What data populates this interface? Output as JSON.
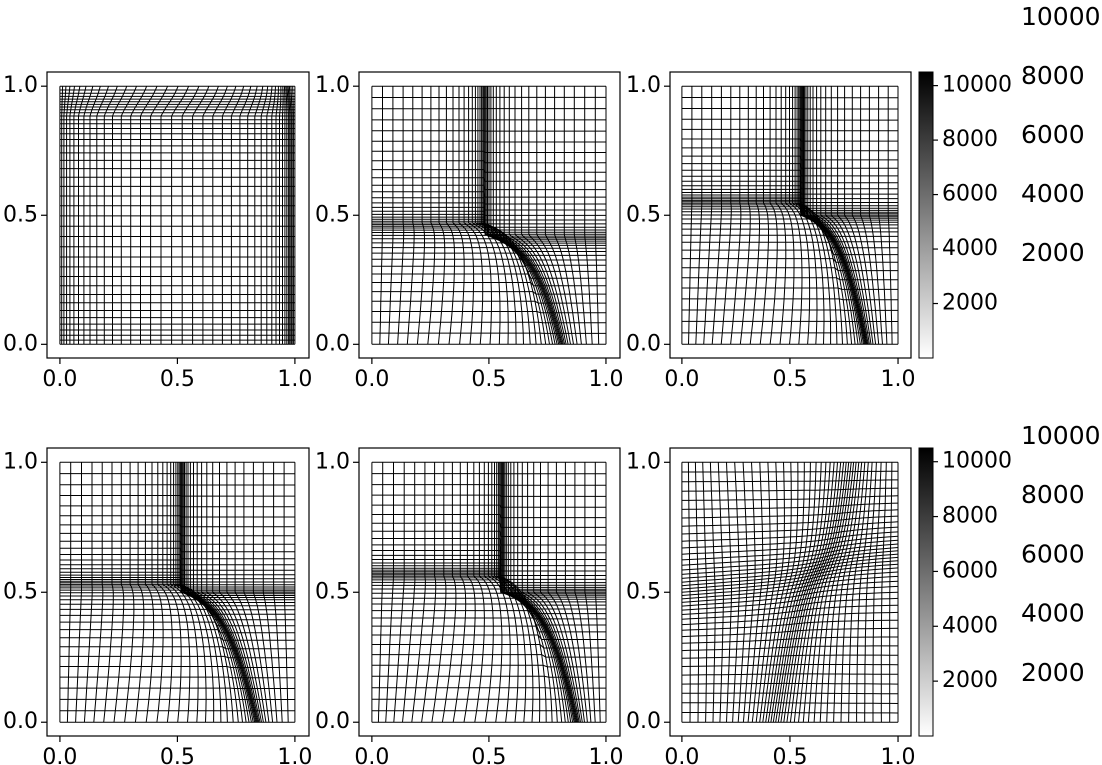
{
  "chart_data": [
    {
      "type": "mesh",
      "xlim": [
        -0.055,
        1.06
      ],
      "ylim": [
        -0.053,
        1.055
      ],
      "xticks": [
        {
          "value": 0,
          "label": "0.0"
        },
        0.5,
        {
          "value": 1,
          "label": "1.0"
        }
      ],
      "yticks": [
        {
          "value": 0,
          "label": "0.0"
        },
        0.5,
        {
          "value": 1,
          "label": "1.0"
        }
      ]
    },
    {
      "type": "mesh",
      "xlim": [
        -0.055,
        1.06
      ],
      "ylim": [
        -0.053,
        1.055
      ],
      "xticks": [
        {
          "value": 0,
          "label": "0.0"
        },
        0.5,
        {
          "value": 1,
          "label": "1.0"
        }
      ],
      "yticks": [
        {
          "value": 0,
          "label": "0.0"
        },
        0.5,
        {
          "value": 1,
          "label": "1.0"
        }
      ]
    },
    {
      "type": "mesh",
      "xlim": [
        -0.055,
        1.06
      ],
      "ylim": [
        -0.053,
        1.055
      ],
      "xticks": [
        {
          "value": 0,
          "label": "0.0"
        },
        0.5,
        {
          "value": 1,
          "label": "1.0"
        }
      ],
      "yticks": [
        {
          "value": 0,
          "label": "0.0"
        },
        0.5,
        {
          "value": 1,
          "label": "1.0"
        }
      ]
    },
    {
      "type": "mesh",
      "xlim": [
        -0.055,
        1.06
      ],
      "ylim": [
        -0.053,
        1.055
      ],
      "xticks": [
        {
          "value": 0,
          "label": "0.0"
        },
        0.5,
        {
          "value": 1,
          "label": "1.0"
        }
      ],
      "yticks": [
        {
          "value": 0,
          "label": "0.0"
        },
        0.5,
        {
          "value": 1,
          "label": "1.0"
        }
      ]
    },
    {
      "type": "mesh",
      "xlim": [
        -0.055,
        1.06
      ],
      "ylim": [
        -0.053,
        1.055
      ],
      "xticks": [
        {
          "value": 0,
          "label": "0.0"
        },
        0.5,
        {
          "value": 1,
          "label": "1.0"
        }
      ],
      "yticks": [
        {
          "value": 0,
          "label": "0.0"
        },
        0.5,
        {
          "value": 1,
          "label": "1.0"
        }
      ]
    },
    {
      "type": "mesh",
      "xlim": [
        -0.055,
        1.06
      ],
      "ylim": [
        -0.053,
        1.055
      ],
      "xticks": [
        {
          "value": 0,
          "label": "0.0"
        },
        0.5,
        {
          "value": 1,
          "label": "1.0"
        }
      ],
      "yticks": [
        {
          "value": 0,
          "label": "0.0"
        },
        0.5,
        {
          "value": 1,
          "label": "1.0"
        }
      ]
    },
    {
      "type": "colorbar",
      "ylim": [
        0,
        10500
      ],
      "yticks": [
        2000,
        4000,
        6000,
        8000,
        10000
      ]
    },
    {
      "type": "colorbar",
      "ylim": [
        0,
        10500
      ],
      "yticks": [
        2000,
        4000,
        6000,
        8000,
        10000
      ]
    },
    {
      "type": "axis",
      "ylim": [
        0,
        10000
      ],
      "yticks": [
        2000,
        4000,
        6000,
        8000,
        10000
      ]
    },
    {
      "type": "axis",
      "ylim": [
        0,
        10000
      ],
      "yticks": [
        2000,
        4000,
        6000,
        8000,
        10000
      ]
    }
  ]
}
